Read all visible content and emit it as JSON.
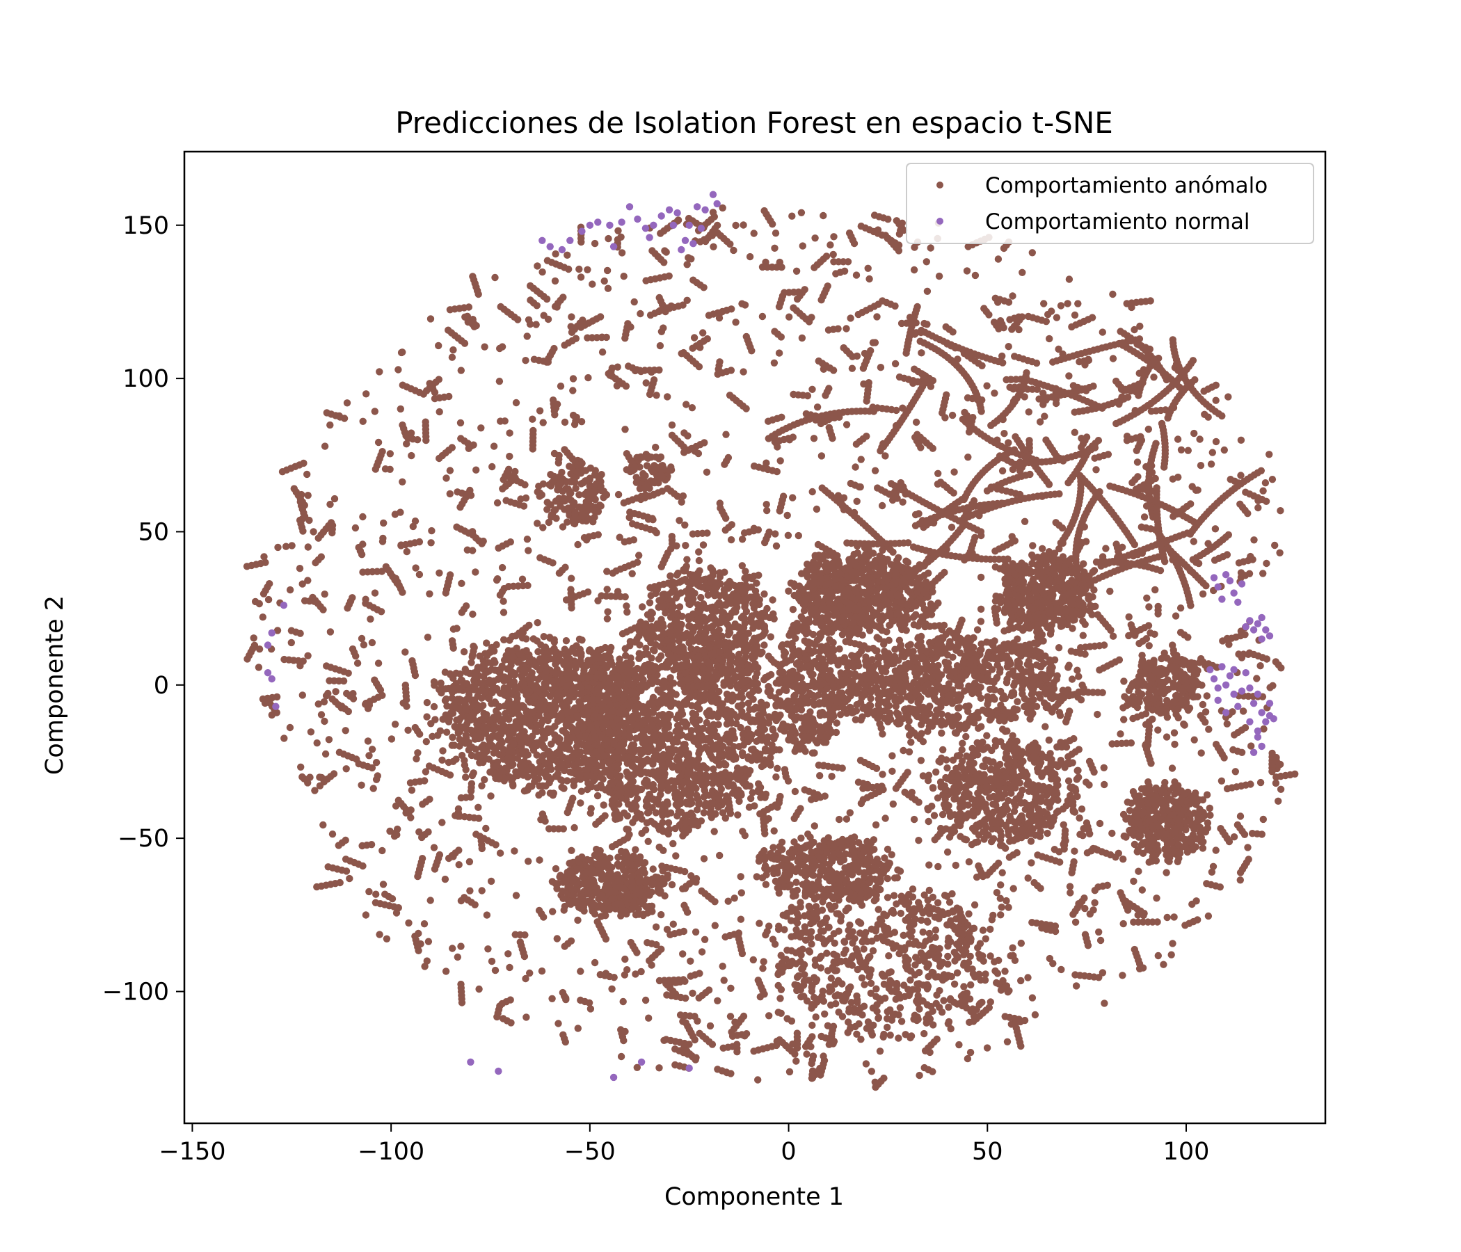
{
  "chart_data": {
    "type": "scatter",
    "title": "Predicciones de Isolation Forest en espacio t-SNE",
    "xlabel": "Componente 1",
    "ylabel": "Componente 2",
    "xlim": [
      -152,
      135
    ],
    "ylim": [
      -143,
      174
    ],
    "xticks": [
      -150,
      -100,
      -50,
      0,
      50,
      100
    ],
    "xtick_labels": [
      "−150",
      "−100",
      "−50",
      "0",
      "50",
      "100"
    ],
    "yticks": [
      150,
      100,
      50,
      0,
      -50,
      -100
    ],
    "ytick_labels": [
      "150",
      "100",
      "50",
      "0",
      "−50",
      "−100"
    ],
    "grid": false,
    "legend_position": "top-right",
    "series": [
      {
        "name": "Comportamiento anómalo",
        "color": "#8c564b",
        "dense_regions": [
          {
            "cx": -63,
            "cy": -10,
            "rx": 30,
            "ry": 28,
            "n": 1100
          },
          {
            "cx": -30,
            "cy": -15,
            "rx": 32,
            "ry": 35,
            "n": 1400
          },
          {
            "cx": -20,
            "cy": 20,
            "rx": 18,
            "ry": 22,
            "n": 500
          },
          {
            "cx": 18,
            "cy": 30,
            "rx": 20,
            "ry": 15,
            "n": 700
          },
          {
            "cx": 65,
            "cy": 30,
            "rx": 14,
            "ry": 15,
            "n": 450
          },
          {
            "cx": 40,
            "cy": 0,
            "rx": 35,
            "ry": 18,
            "n": 800
          },
          {
            "cx": 55,
            "cy": -35,
            "rx": 22,
            "ry": 20,
            "n": 500
          },
          {
            "cx": 95,
            "cy": -45,
            "rx": 12,
            "ry": 14,
            "n": 350
          },
          {
            "cx": -45,
            "cy": -65,
            "rx": 16,
            "ry": 12,
            "n": 350
          },
          {
            "cx": 10,
            "cy": -60,
            "rx": 20,
            "ry": 12,
            "n": 350
          },
          {
            "cx": 25,
            "cy": -90,
            "rx": 35,
            "ry": 28,
            "n": 500
          },
          {
            "cx": -54,
            "cy": 62,
            "rx": 10,
            "ry": 12,
            "n": 150
          },
          {
            "cx": -35,
            "cy": 70,
            "rx": 6,
            "ry": 6,
            "n": 60
          },
          {
            "cx": 95,
            "cy": 0,
            "rx": 10,
            "ry": 12,
            "n": 200
          },
          {
            "cx": 5,
            "cy": 0,
            "rx": 10,
            "ry": 25,
            "n": 300
          }
        ],
        "scattered_points": 1800,
        "curve_count": 45
      },
      {
        "name": "Comportamiento normal",
        "color": "#9467bd",
        "points": [
          [
            -62,
            145
          ],
          [
            -60,
            143
          ],
          [
            -57,
            142
          ],
          [
            -55,
            145
          ],
          [
            -52,
            148
          ],
          [
            -50,
            150
          ],
          [
            -48,
            151
          ],
          [
            -45,
            150
          ],
          [
            -44,
            143
          ],
          [
            -42,
            151
          ],
          [
            -40,
            156
          ],
          [
            -38,
            152
          ],
          [
            -36,
            149
          ],
          [
            -35,
            146
          ],
          [
            -34,
            150
          ],
          [
            -32,
            153
          ],
          [
            -30,
            155
          ],
          [
            -29,
            150
          ],
          [
            -28,
            154
          ],
          [
            -27,
            142
          ],
          [
            -26,
            145
          ],
          [
            -25,
            150
          ],
          [
            -24,
            144
          ],
          [
            -23,
            156
          ],
          [
            -22,
            149
          ],
          [
            -21,
            155
          ],
          [
            -19,
            160
          ],
          [
            -18,
            157
          ],
          [
            -130,
            17
          ],
          [
            -131,
            13
          ],
          [
            -131,
            4
          ],
          [
            -130,
            2
          ],
          [
            -129,
            -7
          ],
          [
            -127,
            26
          ],
          [
            -80,
            -123
          ],
          [
            -73,
            -126
          ],
          [
            -44,
            -128
          ],
          [
            -37,
            -123
          ],
          [
            -25,
            -125
          ],
          [
            107,
            35
          ],
          [
            108,
            32
          ],
          [
            109,
            28
          ],
          [
            110,
            36
          ],
          [
            111,
            34
          ],
          [
            112,
            30
          ],
          [
            113,
            27
          ],
          [
            114,
            33
          ],
          [
            115,
            19
          ],
          [
            116,
            21
          ],
          [
            117,
            18
          ],
          [
            118,
            20
          ],
          [
            119,
            22
          ],
          [
            120,
            18
          ],
          [
            121,
            16
          ],
          [
            119,
            15
          ],
          [
            106,
            5
          ],
          [
            107,
            2
          ],
          [
            108,
            -1
          ],
          [
            108,
            -5
          ],
          [
            109,
            6
          ],
          [
            110,
            0
          ],
          [
            110,
            -9
          ],
          [
            111,
            3
          ],
          [
            112,
            -3
          ],
          [
            112,
            5
          ],
          [
            113,
            -7
          ],
          [
            114,
            -2
          ],
          [
            115,
            4
          ],
          [
            116,
            -1
          ],
          [
            116,
            -12
          ],
          [
            117,
            -6
          ],
          [
            118,
            -3
          ],
          [
            118,
            -15
          ],
          [
            119,
            -9
          ],
          [
            120,
            -12
          ],
          [
            121,
            -6
          ],
          [
            121,
            -10
          ],
          [
            122,
            -11
          ],
          [
            119,
            -20
          ],
          [
            118,
            -17
          ],
          [
            117,
            -22
          ]
        ]
      }
    ]
  }
}
